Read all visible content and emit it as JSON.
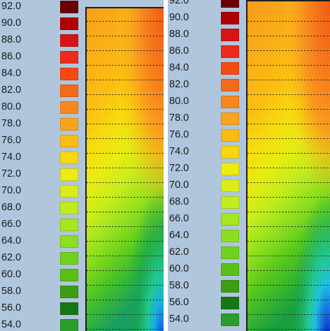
{
  "legend_labels": [
    "92.0",
    "90.0",
    "88.0",
    "86.0",
    "84.0",
    "82.0",
    "80.0",
    "78.0",
    "76.0",
    "74.0",
    "72.0",
    "70.0",
    "68.0",
    "66.0",
    "64.0",
    "62.0",
    "60.0",
    "58.0",
    "56.0",
    "54.0"
  ],
  "legend_colors": [
    "#6b0000",
    "#b00000",
    "#d61414",
    "#ee2a1a",
    "#f44a12",
    "#f56a18",
    "#f7881e",
    "#f9a41c",
    "#fbbc12",
    "#f9d60e",
    "#eeeb10",
    "#dcec18",
    "#c3ec1c",
    "#a6e61e",
    "#8ede20",
    "#6fd21c",
    "#5ac014",
    "#3c9e10",
    "#137814",
    "#2a9d2a"
  ],
  "panels": [
    {
      "name": "left-panel"
    },
    {
      "name": "right-panel"
    }
  ]
}
